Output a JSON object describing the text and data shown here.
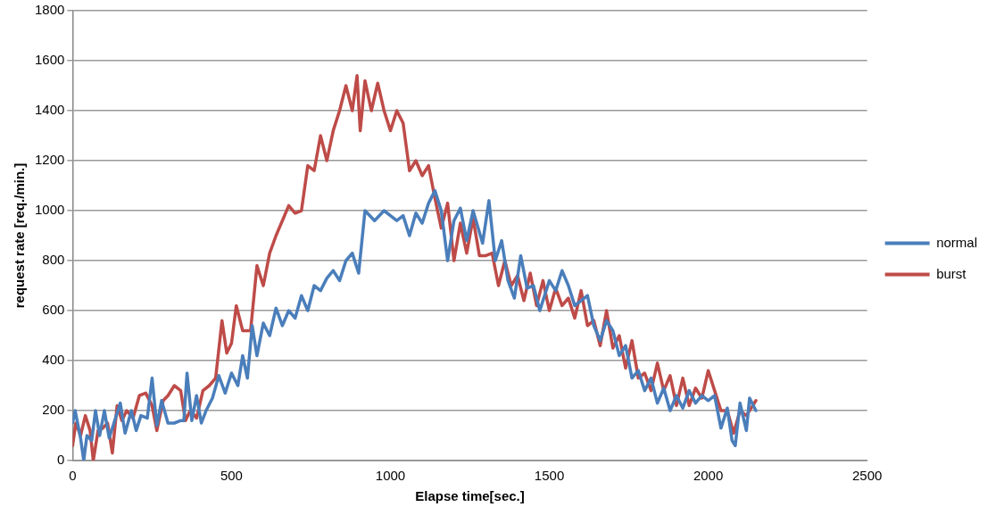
{
  "chart_data": {
    "type": "line",
    "xlabel": "Elapse time[sec.]",
    "ylabel": "request rate [req./min.]",
    "xlim": [
      0,
      2500
    ],
    "xticks": [
      0,
      500,
      1000,
      1500,
      2000,
      2500
    ],
    "ylim": [
      0,
      1800
    ],
    "yticks": [
      0,
      200,
      400,
      600,
      800,
      1000,
      1200,
      1400,
      1600,
      1800
    ],
    "grid": "y",
    "legend": "right",
    "marker": "none",
    "line_style": "solid",
    "series": [
      {
        "name": "normal",
        "color": "#4a7ebb",
        "x": [
          0,
          8,
          25,
          35,
          45,
          60,
          72,
          85,
          100,
          115,
          130,
          150,
          165,
          185,
          200,
          215,
          235,
          250,
          265,
          280,
          300,
          320,
          340,
          350,
          360,
          375,
          390,
          405,
          420,
          440,
          460,
          480,
          500,
          520,
          535,
          550,
          565,
          580,
          600,
          620,
          640,
          660,
          680,
          700,
          720,
          740,
          760,
          780,
          800,
          820,
          840,
          860,
          880,
          900,
          920,
          950,
          980,
          1000,
          1020,
          1040,
          1060,
          1080,
          1100,
          1120,
          1140,
          1160,
          1180,
          1200,
          1220,
          1240,
          1260,
          1290,
          1310,
          1330,
          1350,
          1370,
          1390,
          1410,
          1430,
          1450,
          1470,
          1500,
          1520,
          1540,
          1560,
          1580,
          1600,
          1620,
          1640,
          1660,
          1680,
          1700,
          1720,
          1740,
          1760,
          1780,
          1800,
          1820,
          1840,
          1860,
          1880,
          1900,
          1920,
          1940,
          1960,
          1980,
          2000,
          2020,
          2040,
          2060,
          2075,
          2085,
          2100,
          2120,
          2130,
          2150
        ],
        "values": [
          150,
          200,
          90,
          0,
          100,
          80,
          200,
          100,
          200,
          90,
          150,
          230,
          110,
          200,
          120,
          180,
          170,
          330,
          140,
          240,
          150,
          150,
          160,
          160,
          350,
          160,
          260,
          150,
          200,
          250,
          340,
          270,
          350,
          300,
          420,
          330,
          540,
          420,
          550,
          500,
          610,
          540,
          600,
          570,
          660,
          600,
          700,
          680,
          730,
          760,
          720,
          800,
          830,
          750,
          1000,
          960,
          1000,
          980,
          960,
          980,
          900,
          990,
          950,
          1030,
          1080,
          1000,
          800,
          960,
          1010,
          880,
          1000,
          870,
          1040,
          800,
          880,
          720,
          650,
          820,
          690,
          700,
          600,
          720,
          680,
          760,
          700,
          620,
          640,
          660,
          540,
          480,
          560,
          520,
          420,
          460,
          330,
          360,
          280,
          330,
          230,
          290,
          200,
          260,
          210,
          280,
          230,
          260,
          240,
          260,
          130,
          210,
          80,
          60,
          230,
          120,
          250,
          200
        ]
      },
      {
        "name": "burst",
        "color": "#be4b48",
        "x": [
          0,
          10,
          25,
          40,
          55,
          65,
          80,
          95,
          110,
          125,
          140,
          155,
          170,
          190,
          210,
          230,
          250,
          265,
          285,
          300,
          320,
          340,
          355,
          370,
          390,
          410,
          430,
          450,
          470,
          485,
          500,
          515,
          535,
          560,
          580,
          600,
          620,
          640,
          660,
          680,
          700,
          720,
          740,
          760,
          780,
          800,
          820,
          840,
          860,
          880,
          895,
          905,
          920,
          940,
          960,
          980,
          1000,
          1020,
          1040,
          1060,
          1080,
          1100,
          1120,
          1140,
          1160,
          1180,
          1200,
          1220,
          1240,
          1260,
          1280,
          1300,
          1320,
          1340,
          1360,
          1380,
          1400,
          1420,
          1440,
          1460,
          1480,
          1500,
          1520,
          1540,
          1560,
          1580,
          1600,
          1620,
          1640,
          1660,
          1680,
          1700,
          1720,
          1740,
          1760,
          1780,
          1800,
          1820,
          1840,
          1860,
          1880,
          1900,
          1920,
          1940,
          1960,
          1980,
          2000,
          2020,
          2040,
          2060,
          2080,
          2100,
          2120,
          2150
        ],
        "values": [
          60,
          150,
          100,
          180,
          120,
          0,
          120,
          130,
          150,
          30,
          220,
          160,
          200,
          170,
          260,
          270,
          220,
          120,
          240,
          260,
          300,
          280,
          160,
          200,
          170,
          280,
          300,
          330,
          560,
          430,
          470,
          620,
          520,
          520,
          780,
          700,
          830,
          900,
          960,
          1020,
          990,
          1000,
          1180,
          1160,
          1300,
          1200,
          1320,
          1400,
          1500,
          1400,
          1540,
          1320,
          1520,
          1400,
          1510,
          1400,
          1320,
          1400,
          1350,
          1160,
          1200,
          1140,
          1180,
          1050,
          930,
          1030,
          800,
          950,
          830,
          970,
          820,
          820,
          830,
          700,
          800,
          700,
          740,
          640,
          750,
          620,
          720,
          600,
          690,
          620,
          650,
          570,
          680,
          540,
          560,
          460,
          600,
          450,
          500,
          370,
          480,
          330,
          350,
          280,
          390,
          280,
          340,
          220,
          330,
          220,
          290,
          250,
          360,
          280,
          200,
          200,
          110,
          200,
          180,
          240
        ]
      }
    ]
  }
}
